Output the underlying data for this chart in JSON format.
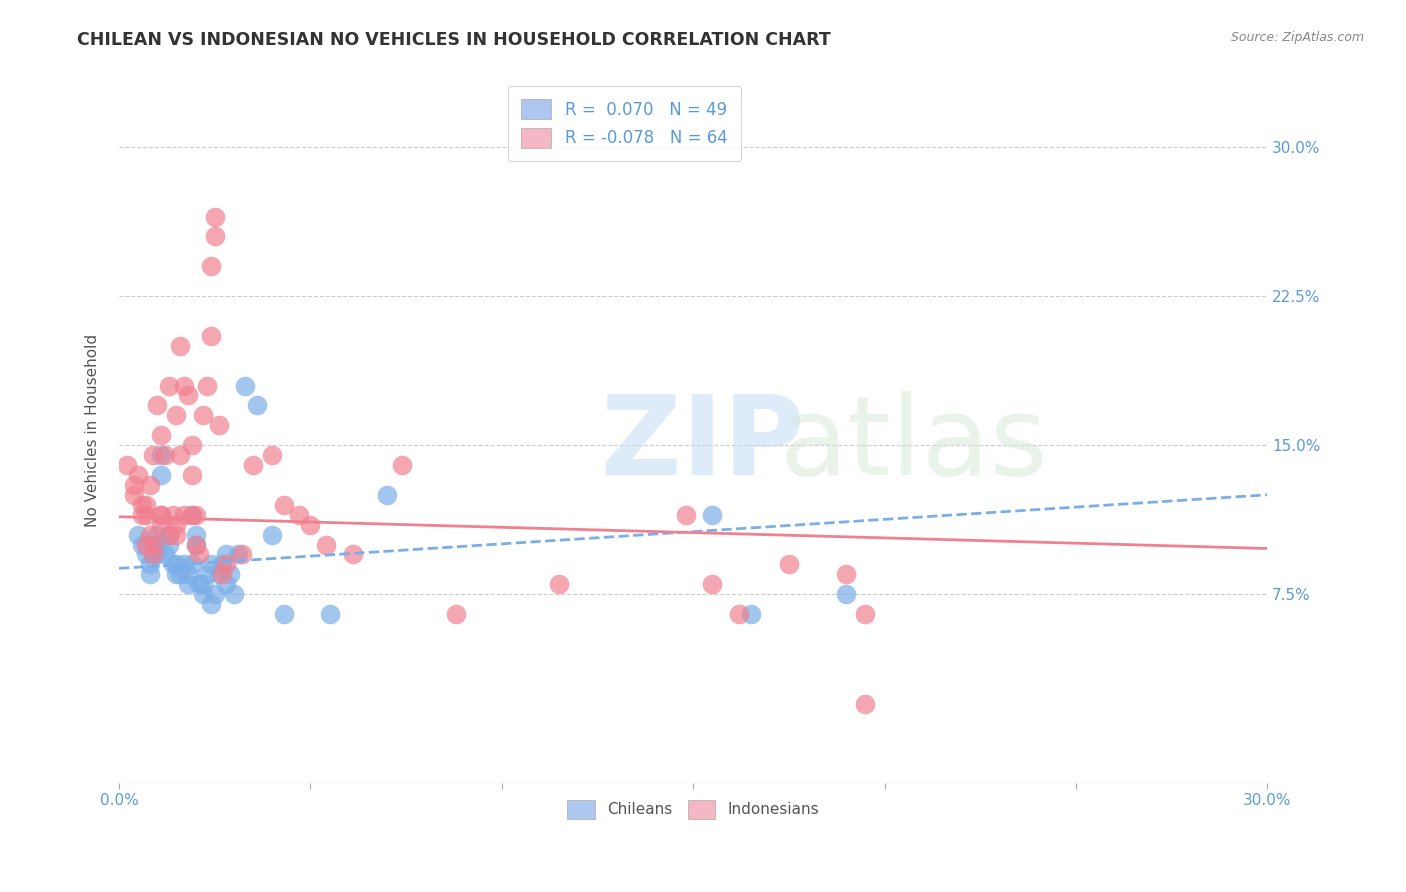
{
  "title": "CHILEAN VS INDONESIAN NO VEHICLES IN HOUSEHOLD CORRELATION CHART",
  "source": "Source: ZipAtlas.com",
  "ylabel": "No Vehicles in Household",
  "ytick_labels": [
    "7.5%",
    "15.0%",
    "22.5%",
    "30.0%"
  ],
  "ytick_values": [
    0.075,
    0.15,
    0.225,
    0.3
  ],
  "xlim": [
    0.0,
    0.3
  ],
  "ylim": [
    -0.02,
    0.335
  ],
  "chilean_color": "#7baee8",
  "indonesian_color": "#f08090",
  "chilean_legend_color": "#aec6f0",
  "indonesian_legend_color": "#f4b8c4",
  "background_color": "#ffffff",
  "grid_color": "#cccccc",
  "title_color": "#333333",
  "right_tick_color": "#5b9bd5",
  "ch_trend_y0": 0.088,
  "ch_trend_y1": 0.125,
  "id_trend_y0": 0.114,
  "id_trend_y1": 0.098,
  "chilean_scatter": [
    [
      0.005,
      0.105
    ],
    [
      0.006,
      0.1
    ],
    [
      0.007,
      0.095
    ],
    [
      0.008,
      0.085
    ],
    [
      0.008,
      0.09
    ],
    [
      0.009,
      0.095
    ],
    [
      0.009,
      0.1
    ],
    [
      0.01,
      0.1
    ],
    [
      0.01,
      0.105
    ],
    [
      0.01,
      0.095
    ],
    [
      0.011,
      0.145
    ],
    [
      0.011,
      0.135
    ],
    [
      0.012,
      0.095
    ],
    [
      0.013,
      0.1
    ],
    [
      0.013,
      0.105
    ],
    [
      0.014,
      0.09
    ],
    [
      0.015,
      0.085
    ],
    [
      0.015,
      0.09
    ],
    [
      0.016,
      0.085
    ],
    [
      0.017,
      0.09
    ],
    [
      0.018,
      0.08
    ],
    [
      0.018,
      0.085
    ],
    [
      0.019,
      0.115
    ],
    [
      0.019,
      0.09
    ],
    [
      0.02,
      0.1
    ],
    [
      0.02,
      0.105
    ],
    [
      0.021,
      0.08
    ],
    [
      0.022,
      0.075
    ],
    [
      0.022,
      0.08
    ],
    [
      0.023,
      0.085
    ],
    [
      0.024,
      0.07
    ],
    [
      0.024,
      0.09
    ],
    [
      0.025,
      0.075
    ],
    [
      0.026,
      0.085
    ],
    [
      0.027,
      0.09
    ],
    [
      0.028,
      0.095
    ],
    [
      0.028,
      0.08
    ],
    [
      0.029,
      0.085
    ],
    [
      0.03,
      0.075
    ],
    [
      0.031,
      0.095
    ],
    [
      0.033,
      0.18
    ],
    [
      0.036,
      0.17
    ],
    [
      0.04,
      0.105
    ],
    [
      0.043,
      0.065
    ],
    [
      0.07,
      0.125
    ],
    [
      0.155,
      0.115
    ],
    [
      0.165,
      0.065
    ],
    [
      0.19,
      0.075
    ],
    [
      0.055,
      0.065
    ]
  ],
  "indonesian_scatter": [
    [
      0.002,
      0.14
    ],
    [
      0.004,
      0.13
    ],
    [
      0.004,
      0.125
    ],
    [
      0.005,
      0.135
    ],
    [
      0.006,
      0.12
    ],
    [
      0.006,
      0.115
    ],
    [
      0.007,
      0.12
    ],
    [
      0.007,
      0.115
    ],
    [
      0.007,
      0.1
    ],
    [
      0.008,
      0.105
    ],
    [
      0.008,
      0.13
    ],
    [
      0.009,
      0.095
    ],
    [
      0.009,
      0.1
    ],
    [
      0.009,
      0.145
    ],
    [
      0.01,
      0.17
    ],
    [
      0.011,
      0.115
    ],
    [
      0.011,
      0.11
    ],
    [
      0.011,
      0.155
    ],
    [
      0.011,
      0.115
    ],
    [
      0.012,
      0.145
    ],
    [
      0.013,
      0.105
    ],
    [
      0.013,
      0.18
    ],
    [
      0.014,
      0.115
    ],
    [
      0.015,
      0.105
    ],
    [
      0.015,
      0.11
    ],
    [
      0.015,
      0.165
    ],
    [
      0.016,
      0.145
    ],
    [
      0.016,
      0.2
    ],
    [
      0.017,
      0.18
    ],
    [
      0.017,
      0.115
    ],
    [
      0.018,
      0.175
    ],
    [
      0.019,
      0.135
    ],
    [
      0.019,
      0.115
    ],
    [
      0.019,
      0.15
    ],
    [
      0.02,
      0.115
    ],
    [
      0.02,
      0.1
    ],
    [
      0.021,
      0.095
    ],
    [
      0.022,
      0.165
    ],
    [
      0.023,
      0.18
    ],
    [
      0.024,
      0.205
    ],
    [
      0.024,
      0.24
    ],
    [
      0.025,
      0.265
    ],
    [
      0.025,
      0.255
    ],
    [
      0.026,
      0.16
    ],
    [
      0.027,
      0.085
    ],
    [
      0.028,
      0.09
    ],
    [
      0.032,
      0.095
    ],
    [
      0.035,
      0.14
    ],
    [
      0.04,
      0.145
    ],
    [
      0.043,
      0.12
    ],
    [
      0.047,
      0.115
    ],
    [
      0.05,
      0.11
    ],
    [
      0.054,
      0.1
    ],
    [
      0.061,
      0.095
    ],
    [
      0.074,
      0.14
    ],
    [
      0.088,
      0.065
    ],
    [
      0.115,
      0.08
    ],
    [
      0.148,
      0.115
    ],
    [
      0.155,
      0.08
    ],
    [
      0.162,
      0.065
    ],
    [
      0.175,
      0.09
    ],
    [
      0.19,
      0.085
    ],
    [
      0.195,
      0.065
    ],
    [
      0.195,
      0.02
    ]
  ]
}
